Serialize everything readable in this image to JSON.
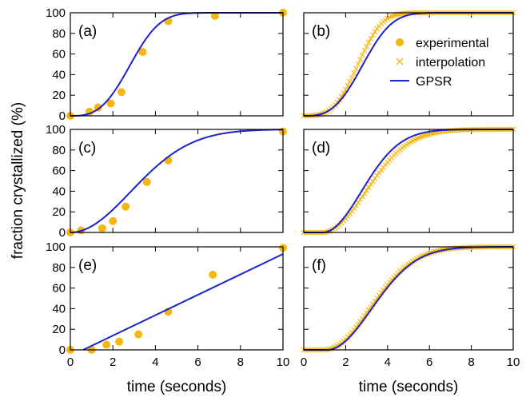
{
  "figure": {
    "ylabel": "fraction crystallized (%)",
    "colors": {
      "experimental": "#f5b70f",
      "interpolation": "#f5b70f",
      "gpsr": "#1a22c8",
      "axis": "#000000"
    }
  },
  "legend": {
    "panel": "b",
    "entries": [
      {
        "name": "experimental",
        "marker": "filled-circle"
      },
      {
        "name": "interpolation",
        "marker": "x-cross"
      },
      {
        "name": "GPSR",
        "marker": "line"
      }
    ]
  },
  "chart_data": [
    {
      "panel": "(a)",
      "type": "scatter",
      "xlim": [
        0,
        10
      ],
      "ylim": [
        0,
        100
      ],
      "xticks": [
        0,
        2,
        4,
        6,
        8,
        10
      ],
      "yticks": [
        0,
        20,
        40,
        60,
        80,
        100
      ],
      "xlabel": "",
      "show_xtick_labels": false,
      "show_ytick_labels": true,
      "series": [
        {
          "name": "experimental",
          "kind": "points",
          "x": [
            0,
            0.9,
            1.3,
            1.9,
            2.4,
            3.4,
            4.6,
            6.8,
            10
          ],
          "y": [
            0,
            4,
            8,
            12,
            23,
            62,
            92,
            97,
            100
          ]
        },
        {
          "name": "GPSR",
          "kind": "sigmoid-line",
          "model": {
            "t0": 0,
            "n": 3,
            "tau": 3.2
          }
        }
      ]
    },
    {
      "panel": "(b)",
      "type": "scatter",
      "xlim": [
        0,
        10
      ],
      "ylim": [
        0,
        100
      ],
      "xticks": [
        0,
        2,
        4,
        6,
        8,
        10
      ],
      "yticks": [
        0,
        20,
        40,
        60,
        80,
        100
      ],
      "xlabel": "",
      "show_xtick_labels": false,
      "show_ytick_labels": false,
      "series": [
        {
          "name": "interpolation",
          "kind": "dense-x",
          "model": {
            "t0": 0,
            "n": 3.3,
            "tau": 2.9
          }
        },
        {
          "name": "GPSR",
          "kind": "sigmoid-line",
          "model": {
            "t0": 0,
            "n": 3,
            "tau": 3.2
          }
        }
      ]
    },
    {
      "panel": "(c)",
      "type": "scatter",
      "xlim": [
        0,
        10
      ],
      "ylim": [
        0,
        100
      ],
      "xticks": [
        0,
        2,
        4,
        6,
        8,
        10
      ],
      "yticks": [
        0,
        20,
        40,
        60,
        80,
        100
      ],
      "xlabel": "",
      "show_xtick_labels": false,
      "show_ytick_labels": true,
      "series": [
        {
          "name": "experimental",
          "kind": "points",
          "x": [
            0,
            0.5,
            1.5,
            2.0,
            2.6,
            3.6,
            4.6,
            10
          ],
          "y": [
            0,
            2,
            4,
            11,
            25,
            49,
            70,
            98
          ]
        },
        {
          "name": "GPSR",
          "kind": "sigmoid-line",
          "model": {
            "t0": 0,
            "n": 2,
            "tau": 4
          }
        }
      ]
    },
    {
      "panel": "(d)",
      "type": "scatter",
      "xlim": [
        0,
        10
      ],
      "ylim": [
        0,
        100
      ],
      "xticks": [
        0,
        2,
        4,
        6,
        8,
        10
      ],
      "yticks": [
        0,
        20,
        40,
        60,
        80,
        100
      ],
      "xlabel": "",
      "show_xtick_labels": false,
      "show_ytick_labels": false,
      "series": [
        {
          "name": "interpolation",
          "kind": "dense-x",
          "model": {
            "t0": 0.9,
            "n": 2,
            "tau": 2.9
          }
        },
        {
          "name": "GPSR",
          "kind": "sigmoid-line",
          "model": {
            "t0": 0.9,
            "n": 2,
            "tau": 2.6
          }
        }
      ]
    },
    {
      "panel": "(e)",
      "type": "scatter",
      "xlim": [
        0,
        10
      ],
      "ylim": [
        0,
        100
      ],
      "xticks": [
        0,
        2,
        4,
        6,
        8,
        10
      ],
      "yticks": [
        0,
        20,
        40,
        60,
        80,
        100
      ],
      "xlabel": "time (seconds)",
      "show_xtick_labels": true,
      "show_ytick_labels": true,
      "series": [
        {
          "name": "experimental",
          "kind": "points",
          "x": [
            0,
            1.0,
            1.7,
            2.3,
            3.2,
            4.6,
            6.7,
            10
          ],
          "y": [
            0,
            0,
            5,
            8,
            15,
            37,
            73,
            99
          ]
        },
        {
          "name": "GPSR",
          "kind": "straight-line",
          "x": [
            0.6,
            10
          ],
          "y": [
            0,
            93
          ]
        }
      ]
    },
    {
      "panel": "(f)",
      "type": "scatter",
      "xlim": [
        0,
        10
      ],
      "ylim": [
        0,
        100
      ],
      "xticks": [
        0,
        2,
        4,
        6,
        8,
        10
      ],
      "yticks": [
        0,
        20,
        40,
        60,
        80,
        100
      ],
      "xlabel": "time (seconds)",
      "show_xtick_labels": true,
      "show_ytick_labels": false,
      "series": [
        {
          "name": "interpolation",
          "kind": "dense-x",
          "model": {
            "t0": 1.0,
            "n": 2,
            "tau": 3.0
          }
        },
        {
          "name": "GPSR",
          "kind": "sigmoid-line",
          "model": {
            "t0": 1.1,
            "n": 2,
            "tau": 3.0
          }
        }
      ]
    }
  ]
}
